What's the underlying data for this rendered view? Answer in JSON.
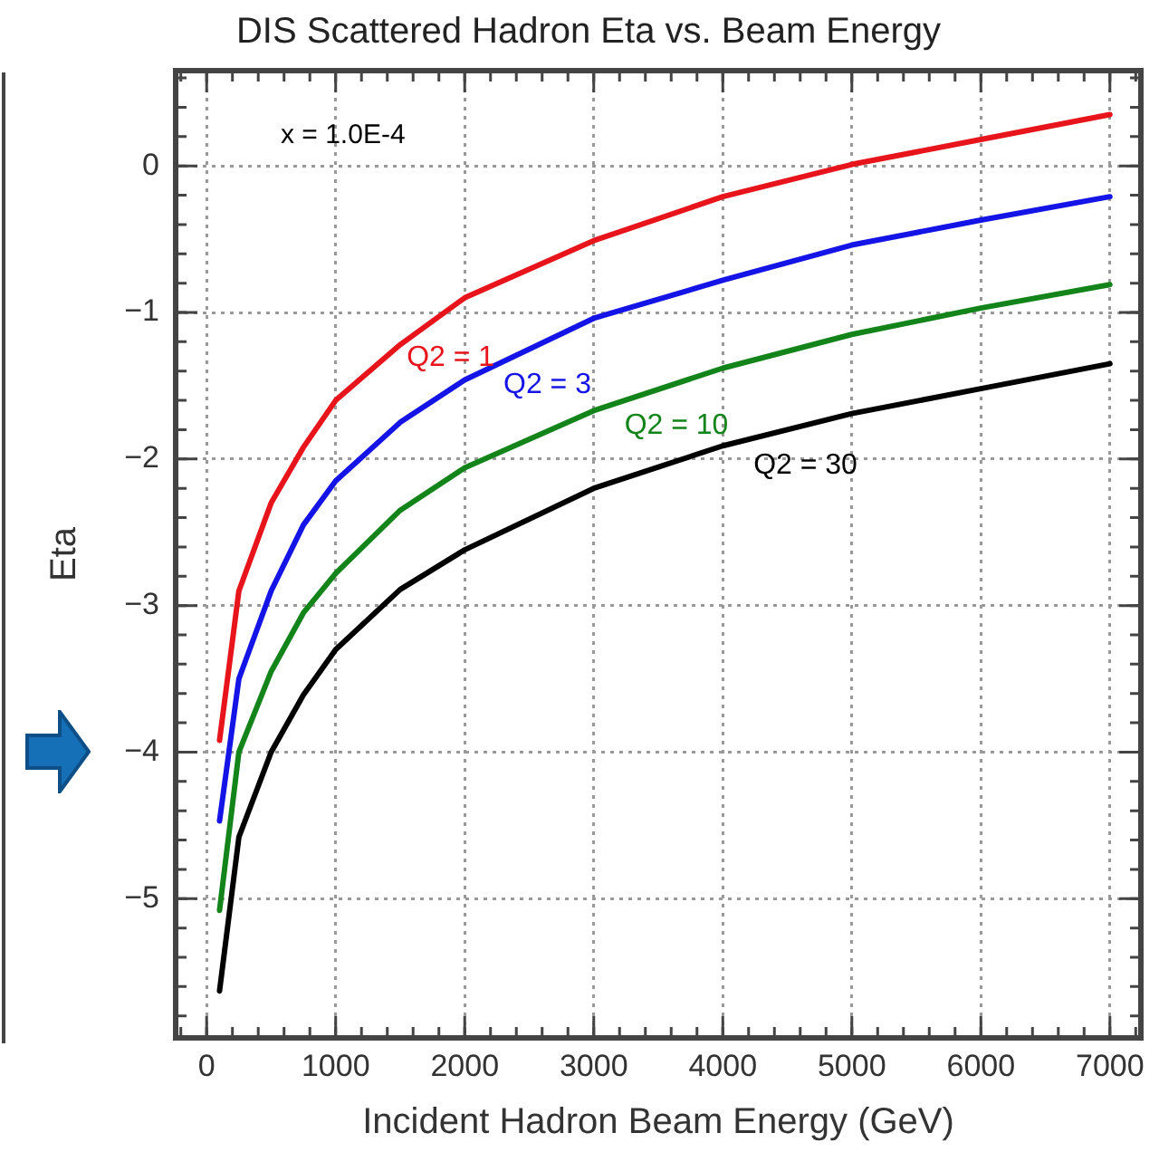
{
  "chart_data": {
    "type": "line",
    "title": "DIS Scattered Hadron Eta vs. Beam Energy",
    "xlabel": "Incident Hadron Beam Energy (GeV)",
    "ylabel": "Eta",
    "annotations": [
      "x = 1.0E-4"
    ],
    "x": [
      100,
      250,
      500,
      750,
      1000,
      1500,
      2000,
      3000,
      4000,
      5000,
      6000,
      7000
    ],
    "series": [
      {
        "name": "Q2 = 1",
        "color": "#e8141b",
        "values": [
          -3.92,
          -2.9,
          -2.3,
          -1.92,
          -1.6,
          -1.22,
          -0.9,
          -0.51,
          -0.21,
          0.01,
          0.18,
          0.35
        ]
      },
      {
        "name": "Q2 = 3",
        "color": "#1414e6",
        "values": [
          -4.47,
          -3.5,
          -2.9,
          -2.45,
          -2.15,
          -1.75,
          -1.46,
          -1.04,
          -0.78,
          -0.54,
          -0.37,
          -0.21
        ]
      },
      {
        "name": "Q2 = 10",
        "color": "#13841a",
        "values": [
          -5.08,
          -4.0,
          -3.45,
          -3.05,
          -2.78,
          -2.35,
          -2.06,
          -1.67,
          -1.38,
          -1.15,
          -0.97,
          -0.81
        ]
      },
      {
        "name": "Q2 = 30",
        "color": "#000000",
        "values": [
          -5.63,
          -4.58,
          -4.0,
          -3.61,
          -3.3,
          -2.89,
          -2.62,
          -2.2,
          -1.91,
          -1.69,
          -1.52,
          -1.35
        ]
      }
    ],
    "xlim": [
      -240,
      7240
    ],
    "xticks": [
      0,
      1000,
      2000,
      3000,
      4000,
      5000,
      6000,
      7000
    ],
    "ylim": [
      -5.95,
      0.65
    ],
    "yticks": [
      {
        "value": -5,
        "label": "−5"
      },
      {
        "value": -4,
        "label": "−4"
      },
      {
        "value": -3,
        "label": "−3"
      },
      {
        "value": -2,
        "label": "−2"
      },
      {
        "value": -1,
        "label": "−1"
      },
      0
    ],
    "grid": true,
    "legend": false,
    "marker": "none",
    "line_style": "solid"
  }
}
